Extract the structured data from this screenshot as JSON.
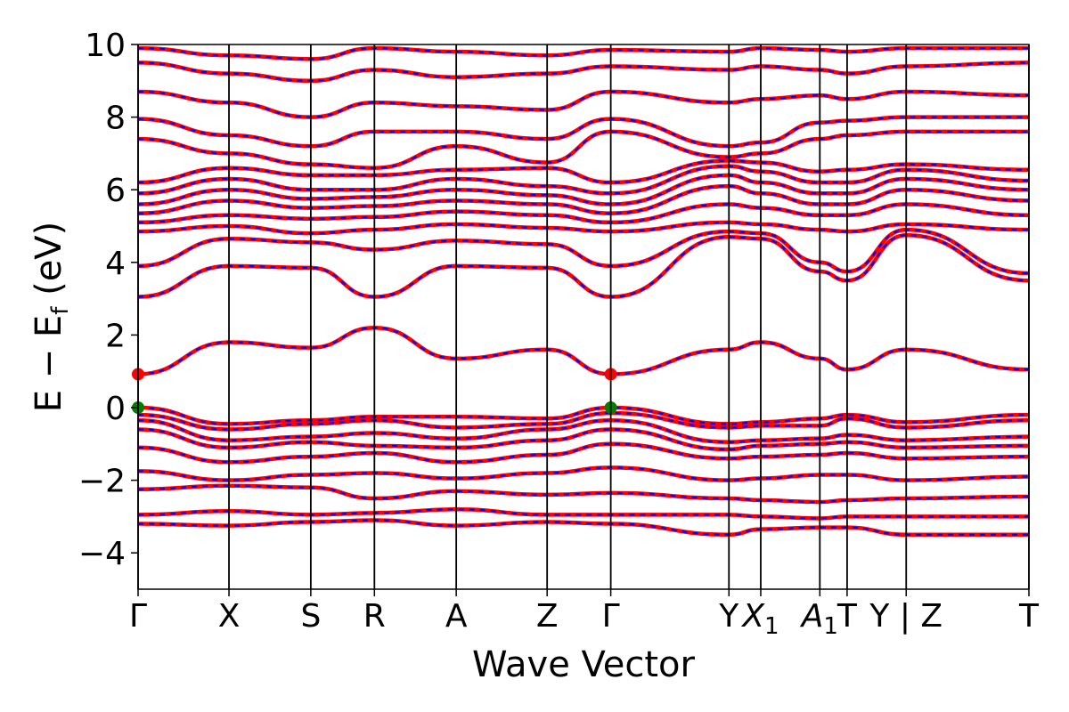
{
  "chart_data": {
    "type": "line",
    "title": "",
    "xlabel": "Wave Vector",
    "ylabel_parts": {
      "main": "E − E",
      "sub": "f",
      "unit": " (eV)"
    },
    "ylim": [
      -5,
      10
    ],
    "yticks": [
      -4,
      -2,
      0,
      2,
      4,
      6,
      8,
      10
    ],
    "ytick_labels": [
      "−4",
      "−2",
      "0",
      "2",
      "4",
      "6",
      "8",
      "10"
    ],
    "grid": false,
    "legend": "none",
    "colors": {
      "band_red": "#ff0000",
      "band_blue": "#0000ff",
      "vbm_marker": "#008000",
      "cbm_marker": "#ff0000",
      "axis": "#000000"
    },
    "kpath": [
      {
        "label": "Γ",
        "x": 0.0
      },
      {
        "label": "X",
        "x": 0.2
      },
      {
        "label": "S",
        "x": 0.38
      },
      {
        "label": "R",
        "x": 0.52
      },
      {
        "label": "A",
        "x": 0.7
      },
      {
        "label": "Z",
        "x": 0.9
      },
      {
        "label": "Γ",
        "x": 1.04
      },
      {
        "label": "Y",
        "x": 1.3
      },
      {
        "label": "X",
        "sub": "1",
        "x": 1.37
      },
      {
        "label": "A",
        "sub": "1",
        "x": 1.5
      },
      {
        "label": "T",
        "x": 1.56
      },
      {
        "label": "Y",
        "x": 1.69
      },
      {
        "label": "|",
        "x": 1.69
      },
      {
        "label": "Z",
        "x": 1.69
      },
      {
        "label": "T",
        "x": 1.96
      }
    ],
    "xlim": [
      0.0,
      1.96
    ],
    "band_gap_points": {
      "vbm": [
        {
          "x": 0.0,
          "y": 0.0
        },
        {
          "x": 1.04,
          "y": 0.0
        }
      ],
      "cbm": [
        {
          "x": 0.0,
          "y": 0.92
        },
        {
          "x": 1.04,
          "y": 0.92
        }
      ]
    },
    "series": [
      {
        "x": [
          0.0,
          0.2,
          0.38,
          0.52,
          0.7,
          0.9,
          1.04,
          1.3,
          1.37,
          1.5,
          1.56,
          1.69,
          1.96
        ],
        "values": [
          0.92,
          1.8,
          1.65,
          2.2,
          1.35,
          1.6,
          0.92,
          1.6,
          1.8,
          1.35,
          1.05,
          1.6,
          1.05
        ]
      },
      {
        "x": [
          0.0,
          0.2,
          0.38,
          0.52,
          0.7,
          0.9,
          1.04,
          1.3,
          1.37,
          1.5,
          1.56,
          1.69,
          1.96
        ],
        "values": [
          0.0,
          -0.45,
          -0.35,
          -0.25,
          -0.25,
          -0.3,
          0.0,
          -0.45,
          -0.4,
          -0.3,
          -0.2,
          -0.4,
          -0.2
        ]
      },
      {
        "x": [
          0.0,
          0.2,
          0.38,
          0.52,
          0.7,
          0.9,
          1.04,
          1.3,
          1.37,
          1.5,
          1.56,
          1.69,
          1.96
        ],
        "values": [
          -0.2,
          -0.6,
          -0.45,
          -0.35,
          -0.55,
          -0.45,
          -0.15,
          -0.55,
          -0.5,
          -0.5,
          -0.3,
          -0.55,
          -0.35
        ]
      },
      {
        "x": [
          0.0,
          0.2,
          0.38,
          0.52,
          0.7,
          0.9,
          1.04,
          1.3,
          1.37,
          1.5,
          1.56,
          1.69,
          1.96
        ],
        "values": [
          -0.35,
          -0.9,
          -0.8,
          -0.7,
          -0.85,
          -0.6,
          -0.35,
          -0.95,
          -0.9,
          -0.85,
          -0.75,
          -0.9,
          -0.8
        ]
      },
      {
        "x": [
          0.0,
          0.2,
          0.38,
          0.52,
          0.7,
          0.9,
          1.04,
          1.3,
          1.37,
          1.5,
          1.56,
          1.69,
          1.96
        ],
        "values": [
          -0.6,
          -1.1,
          -0.95,
          -1.05,
          -1.1,
          -0.9,
          -0.6,
          -1.15,
          -1.05,
          -1.0,
          -0.95,
          -1.1,
          -1.05
        ]
      },
      {
        "x": [
          0.0,
          0.2,
          0.38,
          0.52,
          0.7,
          0.9,
          1.04,
          1.3,
          1.37,
          1.5,
          1.56,
          1.69,
          1.96
        ],
        "values": [
          -1.1,
          -1.5,
          -1.35,
          -1.25,
          -1.5,
          -1.3,
          -1.0,
          -1.4,
          -1.35,
          -1.3,
          -1.25,
          -1.4,
          -1.35
        ]
      },
      {
        "x": [
          0.0,
          0.2,
          0.38,
          0.52,
          0.7,
          0.9,
          1.04,
          1.3,
          1.37,
          1.5,
          1.56,
          1.69,
          1.96
        ],
        "values": [
          -1.75,
          -2.0,
          -1.85,
          -1.8,
          -1.95,
          -1.8,
          -1.65,
          -2.0,
          -1.95,
          -1.85,
          -1.85,
          -2.0,
          -1.9
        ]
      },
      {
        "x": [
          0.0,
          0.2,
          0.38,
          0.52,
          0.7,
          0.9,
          1.04,
          1.3,
          1.37,
          1.5,
          1.56,
          1.69,
          1.96
        ],
        "values": [
          -2.25,
          -2.15,
          -2.2,
          -2.5,
          -2.3,
          -2.4,
          -2.35,
          -2.5,
          -2.55,
          -2.6,
          -2.55,
          -2.5,
          -2.45
        ]
      },
      {
        "x": [
          0.0,
          0.2,
          0.38,
          0.52,
          0.7,
          0.9,
          1.04,
          1.3,
          1.37,
          1.5,
          1.56,
          1.69,
          1.96
        ],
        "values": [
          -2.95,
          -2.85,
          -2.95,
          -2.9,
          -2.8,
          -2.95,
          -2.95,
          -2.95,
          -3.0,
          -3.05,
          -3.0,
          -3.0,
          -3.0
        ]
      },
      {
        "x": [
          0.0,
          0.2,
          0.38,
          0.52,
          0.7,
          0.9,
          1.04,
          1.3,
          1.37,
          1.5,
          1.56,
          1.69,
          1.96
        ],
        "values": [
          -3.2,
          -3.25,
          -3.15,
          -3.1,
          -3.25,
          -3.15,
          -3.2,
          -3.5,
          -3.35,
          -3.3,
          -3.3,
          -3.5,
          -3.5
        ]
      },
      {
        "x": [
          0.0,
          0.2,
          0.38,
          0.52,
          0.7,
          0.9,
          1.04,
          1.3,
          1.37,
          1.5,
          1.56,
          1.69,
          1.96
        ],
        "values": [
          3.05,
          3.9,
          3.85,
          3.05,
          3.9,
          3.85,
          3.05,
          4.7,
          4.65,
          3.75,
          3.5,
          4.75,
          3.5
        ]
      },
      {
        "x": [
          0.0,
          0.2,
          0.38,
          0.52,
          0.7,
          0.9,
          1.04,
          1.3,
          1.37,
          1.5,
          1.56,
          1.69,
          1.96
        ],
        "values": [
          3.9,
          4.65,
          4.55,
          4.35,
          4.6,
          4.5,
          3.9,
          4.85,
          4.8,
          4.0,
          3.75,
          4.9,
          3.7
        ]
      },
      {
        "x": [
          0.0,
          0.2,
          0.38,
          0.52,
          0.7,
          0.9,
          1.04,
          1.3,
          1.37,
          1.5,
          1.56,
          1.69,
          1.96
        ],
        "values": [
          4.85,
          5.0,
          4.8,
          4.9,
          5.05,
          4.95,
          4.85,
          5.1,
          5.05,
          4.9,
          4.85,
          5.05,
          4.9
        ]
      },
      {
        "x": [
          0.0,
          0.2,
          0.38,
          0.52,
          0.7,
          0.9,
          1.04,
          1.3,
          1.37,
          1.5,
          1.56,
          1.69,
          1.96
        ],
        "values": [
          5.1,
          5.3,
          5.2,
          5.25,
          5.4,
          5.3,
          5.1,
          5.6,
          5.5,
          5.3,
          5.3,
          5.6,
          5.3
        ]
      },
      {
        "x": [
          0.0,
          0.2,
          0.38,
          0.52,
          0.7,
          0.9,
          1.04,
          1.3,
          1.37,
          1.5,
          1.56,
          1.69,
          1.96
        ],
        "values": [
          5.35,
          5.7,
          5.5,
          5.55,
          5.7,
          5.6,
          5.35,
          6.1,
          5.9,
          5.6,
          5.6,
          6.0,
          5.7
        ]
      },
      {
        "x": [
          0.0,
          0.2,
          0.38,
          0.52,
          0.7,
          0.9,
          1.04,
          1.3,
          1.37,
          1.5,
          1.56,
          1.69,
          1.96
        ],
        "values": [
          5.6,
          6.0,
          5.75,
          5.8,
          6.0,
          5.85,
          5.6,
          6.4,
          6.2,
          5.9,
          5.9,
          6.3,
          6.0
        ]
      },
      {
        "x": [
          0.0,
          0.2,
          0.38,
          0.52,
          0.7,
          0.9,
          1.04,
          1.3,
          1.37,
          1.5,
          1.56,
          1.69,
          1.96
        ],
        "values": [
          5.9,
          6.3,
          6.0,
          6.0,
          6.3,
          6.1,
          5.9,
          6.65,
          6.5,
          6.2,
          6.2,
          6.55,
          6.25
        ]
      },
      {
        "x": [
          0.0,
          0.2,
          0.38,
          0.52,
          0.7,
          0.9,
          1.04,
          1.3,
          1.37,
          1.5,
          1.56,
          1.69,
          1.96
        ],
        "values": [
          6.2,
          6.6,
          6.4,
          6.4,
          6.55,
          6.6,
          6.2,
          6.8,
          6.75,
          6.5,
          6.55,
          6.7,
          6.55
        ]
      },
      {
        "x": [
          0.0,
          0.2,
          0.38,
          0.52,
          0.7,
          0.9,
          1.04,
          1.3,
          1.37,
          1.5,
          1.56,
          1.69,
          1.96
        ],
        "values": [
          7.4,
          7.0,
          6.7,
          6.6,
          7.2,
          6.75,
          7.6,
          6.9,
          7.0,
          7.4,
          7.5,
          7.6,
          7.6
        ]
      },
      {
        "x": [
          0.0,
          0.2,
          0.38,
          0.52,
          0.7,
          0.9,
          1.04,
          1.3,
          1.37,
          1.5,
          1.56,
          1.69,
          1.96
        ],
        "values": [
          7.95,
          7.5,
          7.2,
          7.6,
          7.6,
          7.4,
          7.95,
          7.2,
          7.3,
          7.85,
          7.9,
          8.0,
          8.0
        ]
      },
      {
        "x": [
          0.0,
          0.2,
          0.38,
          0.52,
          0.7,
          0.9,
          1.04,
          1.3,
          1.37,
          1.5,
          1.56,
          1.69,
          1.96
        ],
        "values": [
          8.7,
          8.4,
          8.0,
          8.4,
          8.3,
          8.2,
          8.7,
          8.4,
          8.5,
          8.6,
          8.5,
          8.7,
          8.6
        ]
      },
      {
        "x": [
          0.0,
          0.2,
          0.38,
          0.52,
          0.7,
          0.9,
          1.04,
          1.3,
          1.37,
          1.5,
          1.56,
          1.69,
          1.96
        ],
        "values": [
          9.5,
          9.2,
          9.0,
          9.3,
          9.1,
          9.2,
          9.4,
          9.3,
          9.4,
          9.3,
          9.2,
          9.4,
          9.5
        ]
      },
      {
        "x": [
          0.0,
          0.2,
          0.38,
          0.52,
          0.7,
          0.9,
          1.04,
          1.3,
          1.37,
          1.5,
          1.56,
          1.69,
          1.96
        ],
        "values": [
          9.9,
          9.7,
          9.6,
          9.9,
          9.8,
          9.7,
          9.85,
          9.8,
          9.9,
          9.85,
          9.8,
          9.9,
          9.9
        ]
      }
    ]
  }
}
